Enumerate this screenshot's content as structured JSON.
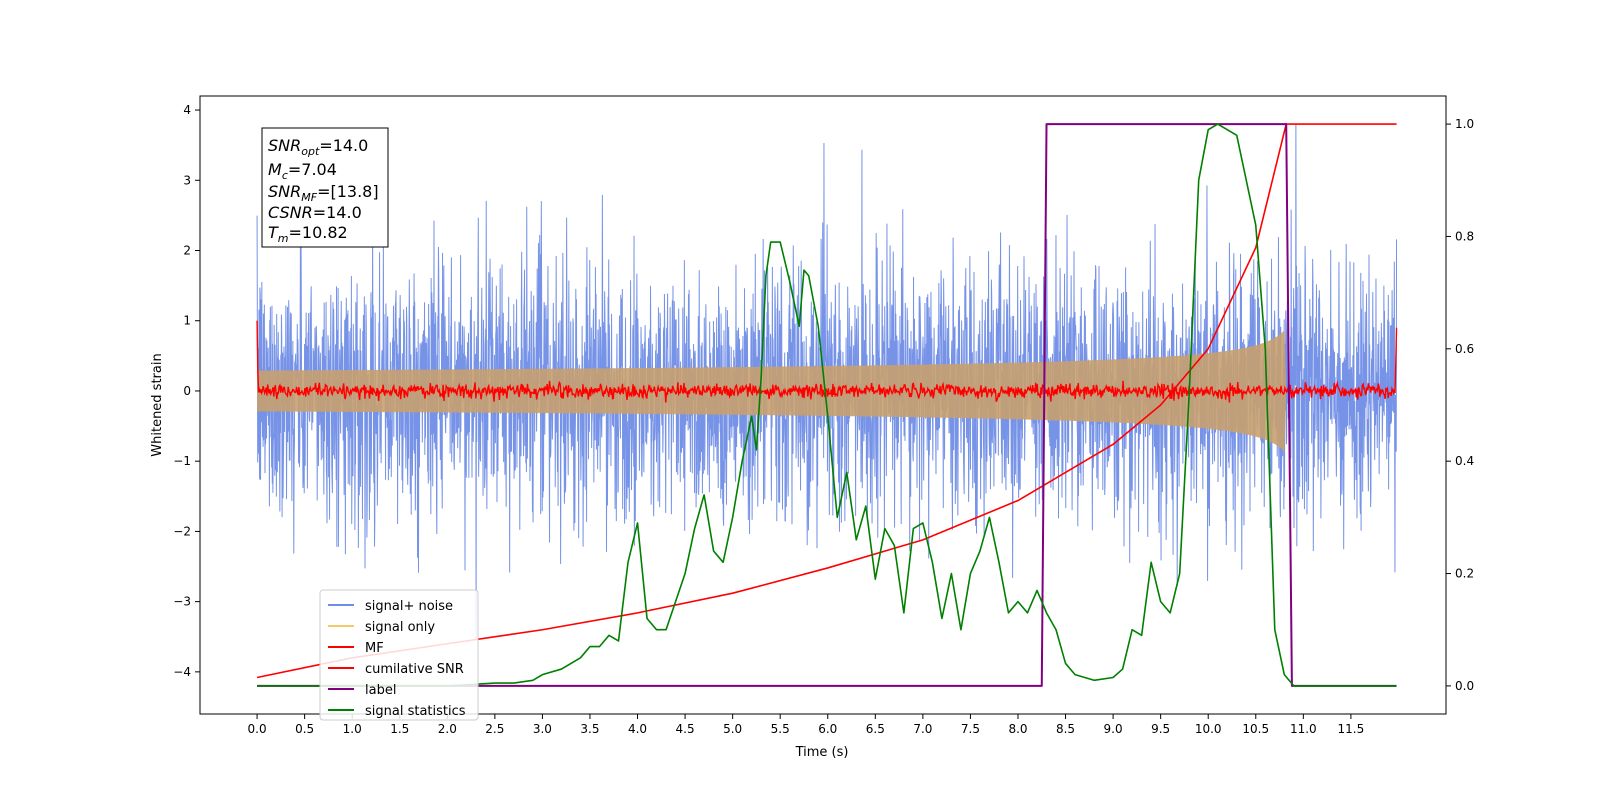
{
  "chart_data": {
    "type": "line",
    "xlabel": "Time (s)",
    "ylabel_left": "Whitened strain",
    "xlim": [
      -0.6,
      12.5
    ],
    "ylim_left": [
      -4.6,
      4.2
    ],
    "ylim_right": [
      -0.05,
      1.05
    ],
    "x_ticks": [
      "0.0",
      "0.5",
      "1.0",
      "1.5",
      "2.0",
      "2.5",
      "3.0",
      "3.5",
      "4.0",
      "4.5",
      "5.0",
      "5.5",
      "6.0",
      "6.5",
      "7.0",
      "7.5",
      "8.0",
      "8.5",
      "9.0",
      "9.5",
      "10.0",
      "10.5",
      "11.0",
      "11.5"
    ],
    "y_ticks_left": [
      "−4",
      "−3",
      "−2",
      "−1",
      "0",
      "1",
      "2",
      "3",
      "4"
    ],
    "y_ticks_right": [
      "0.0",
      "0.2",
      "0.4",
      "0.6",
      "0.8",
      "1.0"
    ],
    "info_box": {
      "snr_opt": {
        "base": "SNR",
        "sub": "opt",
        "value": "=14.0"
      },
      "mc": {
        "base": "M",
        "sub": "c",
        "value": "=7.04"
      },
      "snr_mf": {
        "base": "SNR",
        "sub": "MF",
        "value": "=[13.8]"
      },
      "csnr": {
        "base": "CSNR",
        "sub": "",
        "value": "=14.0"
      },
      "tm": {
        "base": "T",
        "sub": "m",
        "value": "=10.82"
      }
    },
    "legend": {
      "placement": "lower-left",
      "entries": [
        {
          "label": "signal+ noise",
          "color": "#6f8de6"
        },
        {
          "label": "signal only",
          "color": "#f7c96a"
        },
        {
          "label": "MF",
          "color": "#ff0000"
        },
        {
          "label": "cumilative SNR",
          "color": "#ff0000"
        },
        {
          "label": "label",
          "color": "#800080"
        },
        {
          "label": "signal statistics",
          "color": "#008000"
        }
      ]
    },
    "series": [
      {
        "name": "signal+ noise",
        "axis": "left",
        "color": "#6f8de6",
        "t_start": 0.0,
        "t_end": 11.98,
        "noise_sigma": 0.9,
        "description_amplitude_range": [
          -4.2,
          3.8
        ]
      },
      {
        "name": "signal only",
        "axis": "left",
        "color": "#c8a070",
        "t_start": 0.0,
        "t_end": 11.98,
        "chirp_merger_time": 10.82,
        "peak_amplitude": 0.9
      },
      {
        "name": "MF",
        "axis": "left",
        "color": "#ff0000",
        "t_start": 0.0,
        "t_end": 11.98,
        "baseline": 0.0,
        "start_value": 1.0,
        "end_value": 0.9
      },
      {
        "name": "cumilative SNR",
        "axis": "right",
        "color": "#ff0000",
        "x": [
          0.0,
          1.0,
          2.0,
          3.0,
          4.0,
          5.0,
          6.0,
          7.0,
          8.0,
          9.0,
          9.5,
          10.0,
          10.5,
          10.82,
          11.98
        ],
        "y": [
          0.015,
          0.05,
          0.075,
          0.1,
          0.13,
          0.165,
          0.21,
          0.26,
          0.33,
          0.43,
          0.5,
          0.6,
          0.78,
          1.0,
          1.0
        ]
      },
      {
        "name": "label",
        "axis": "right",
        "color": "#800080",
        "x": [
          0.0,
          8.25,
          8.3,
          10.82,
          10.88,
          11.98
        ],
        "y": [
          0.0,
          0.0,
          1.0,
          1.0,
          0.0,
          0.0
        ]
      },
      {
        "name": "signal statistics",
        "axis": "right",
        "color": "#008000",
        "x": [
          0.0,
          1.0,
          2.0,
          2.5,
          2.7,
          2.9,
          3.0,
          3.2,
          3.4,
          3.5,
          3.6,
          3.7,
          3.8,
          3.9,
          4.0,
          4.1,
          4.2,
          4.3,
          4.4,
          4.5,
          4.6,
          4.7,
          4.8,
          4.9,
          5.0,
          5.1,
          5.2,
          5.25,
          5.3,
          5.35,
          5.4,
          5.5,
          5.6,
          5.7,
          5.75,
          5.8,
          5.9,
          6.0,
          6.1,
          6.2,
          6.3,
          6.4,
          6.5,
          6.6,
          6.7,
          6.8,
          6.9,
          7.0,
          7.1,
          7.2,
          7.3,
          7.4,
          7.5,
          7.6,
          7.7,
          7.8,
          7.9,
          8.0,
          8.1,
          8.2,
          8.3,
          8.4,
          8.5,
          8.6,
          8.8,
          9.0,
          9.1,
          9.2,
          9.3,
          9.4,
          9.5,
          9.6,
          9.7,
          9.8,
          9.9,
          10.0,
          10.1,
          10.2,
          10.3,
          10.4,
          10.5,
          10.6,
          10.7,
          10.8,
          10.9,
          11.0,
          11.2,
          11.98
        ],
        "y": [
          0.0,
          0.0,
          0.0,
          0.005,
          0.005,
          0.01,
          0.02,
          0.03,
          0.05,
          0.07,
          0.07,
          0.09,
          0.08,
          0.22,
          0.29,
          0.12,
          0.1,
          0.1,
          0.15,
          0.2,
          0.28,
          0.34,
          0.24,
          0.22,
          0.3,
          0.4,
          0.48,
          0.42,
          0.55,
          0.73,
          0.79,
          0.79,
          0.72,
          0.64,
          0.74,
          0.73,
          0.64,
          0.48,
          0.3,
          0.38,
          0.26,
          0.32,
          0.19,
          0.28,
          0.25,
          0.13,
          0.28,
          0.29,
          0.22,
          0.12,
          0.2,
          0.1,
          0.2,
          0.24,
          0.3,
          0.22,
          0.13,
          0.15,
          0.13,
          0.17,
          0.13,
          0.1,
          0.04,
          0.02,
          0.01,
          0.015,
          0.03,
          0.1,
          0.09,
          0.22,
          0.15,
          0.13,
          0.2,
          0.52,
          0.9,
          0.99,
          1.0,
          0.99,
          0.98,
          0.9,
          0.82,
          0.6,
          0.1,
          0.02,
          0.0,
          0.0,
          0.0,
          0.0
        ]
      }
    ]
  }
}
